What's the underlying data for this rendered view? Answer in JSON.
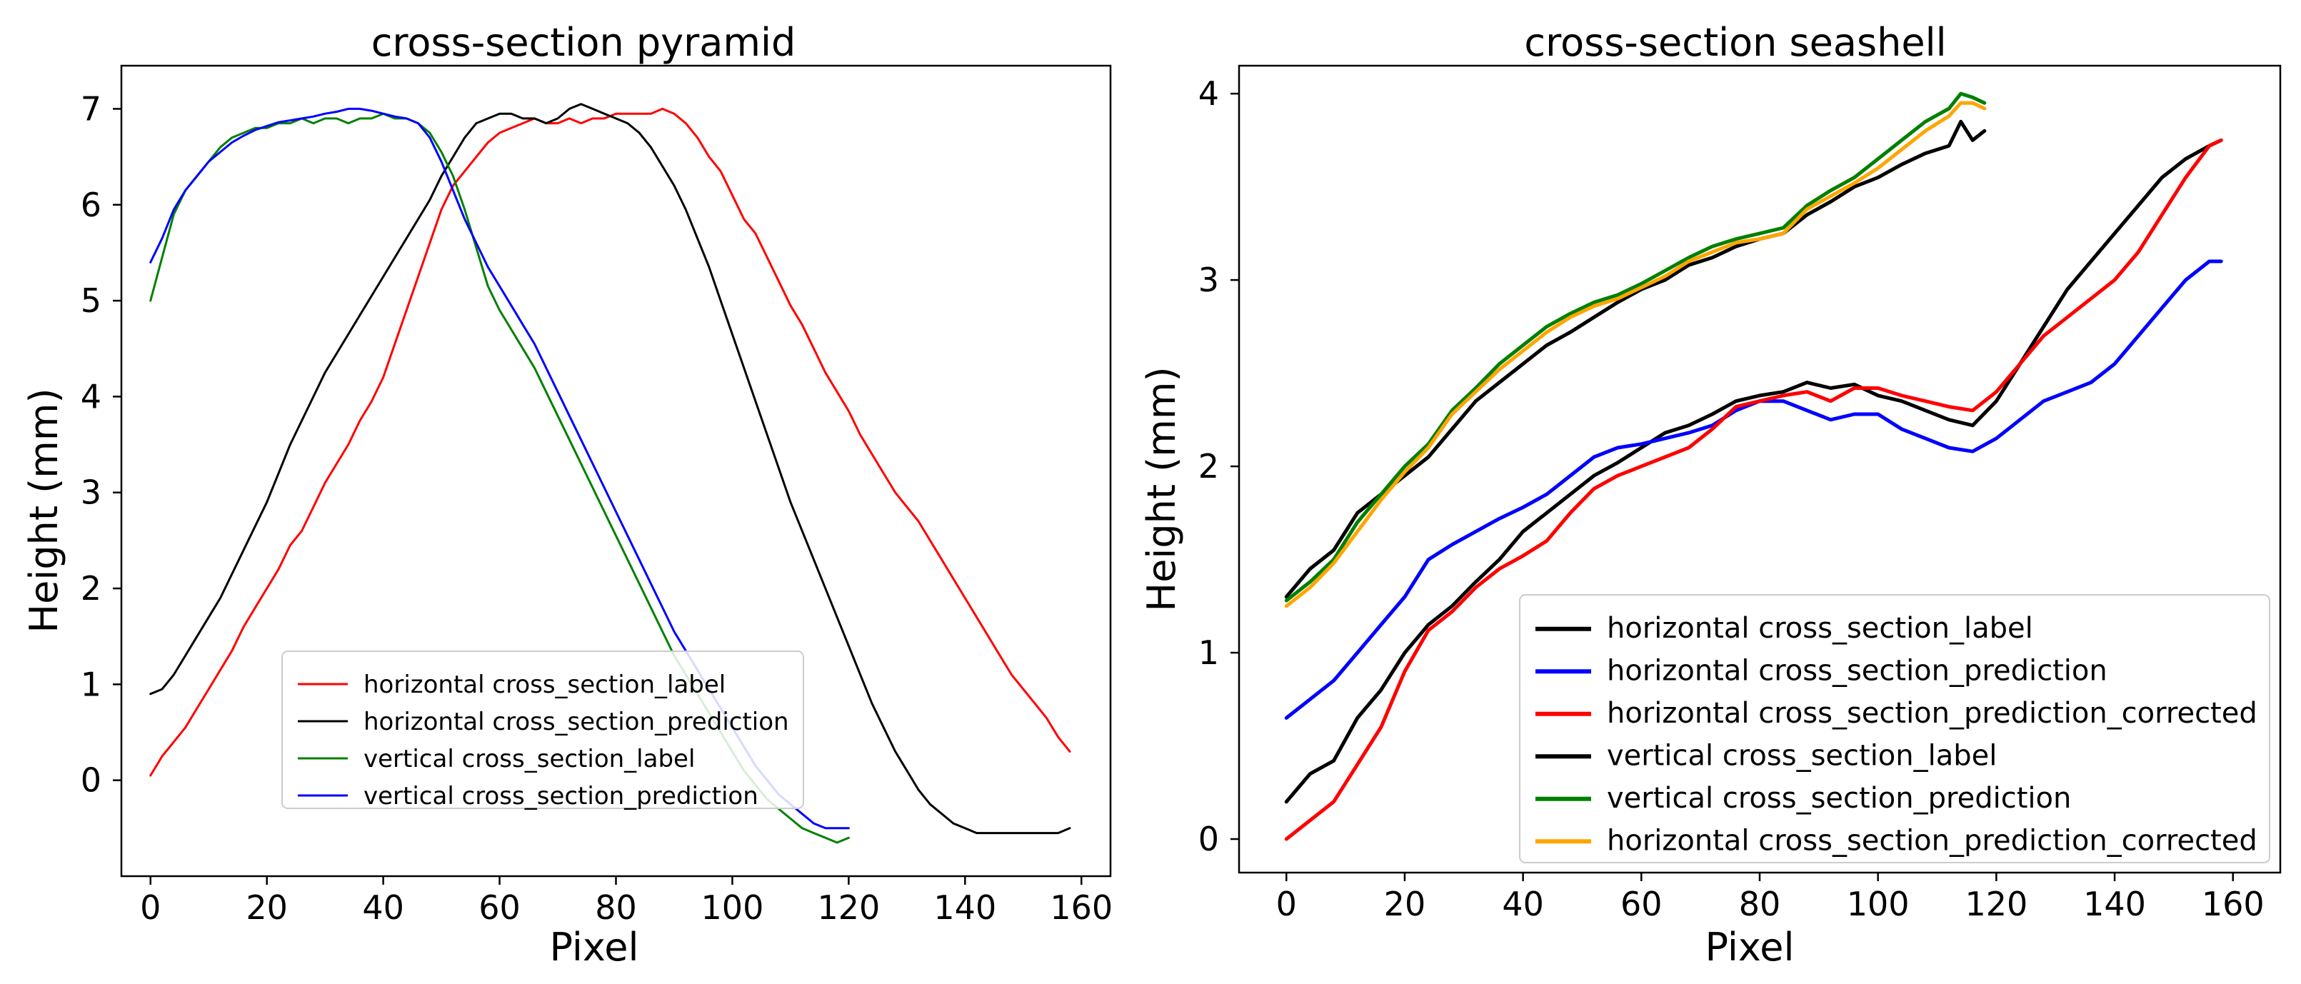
{
  "chart_data": [
    {
      "type": "line",
      "title": "cross-section pyramid",
      "xlabel": "Pixel",
      "ylabel": "Height (mm)",
      "xlim": [
        -5,
        165
      ],
      "ylim": [
        -1.0,
        7.45
      ],
      "xticks": [
        0,
        20,
        40,
        60,
        80,
        100,
        120,
        140,
        160
      ],
      "yticks": [
        0,
        1,
        2,
        3,
        4,
        5,
        6,
        7
      ],
      "legend_position": "lower-center",
      "series": [
        {
          "name": "horizontal cross_section_label",
          "color": "#ff0000",
          "width": 3,
          "x": [
            0,
            2,
            4,
            6,
            8,
            10,
            12,
            14,
            16,
            18,
            20,
            22,
            24,
            26,
            28,
            30,
            32,
            34,
            36,
            38,
            40,
            42,
            44,
            46,
            48,
            50,
            52,
            54,
            56,
            58,
            60,
            62,
            64,
            66,
            68,
            70,
            72,
            74,
            76,
            78,
            80,
            82,
            84,
            86,
            88,
            90,
            92,
            94,
            96,
            98,
            100,
            102,
            104,
            106,
            108,
            110,
            112,
            114,
            116,
            118,
            120,
            122,
            124,
            126,
            128,
            130,
            132,
            134,
            136,
            138,
            140,
            142,
            144,
            146,
            148,
            150,
            152,
            154,
            156,
            158
          ],
          "y": [
            0.05,
            0.25,
            0.4,
            0.55,
            0.75,
            0.95,
            1.15,
            1.35,
            1.6,
            1.8,
            2.0,
            2.2,
            2.45,
            2.6,
            2.85,
            3.1,
            3.3,
            3.5,
            3.75,
            3.95,
            4.2,
            4.55,
            4.9,
            5.25,
            5.6,
            5.95,
            6.2,
            6.35,
            6.5,
            6.65,
            6.75,
            6.8,
            6.85,
            6.9,
            6.85,
            6.85,
            6.9,
            6.85,
            6.9,
            6.9,
            6.95,
            6.95,
            6.95,
            6.95,
            7.0,
            6.95,
            6.85,
            6.7,
            6.5,
            6.35,
            6.1,
            5.85,
            5.7,
            5.45,
            5.2,
            4.95,
            4.75,
            4.5,
            4.25,
            4.05,
            3.85,
            3.6,
            3.4,
            3.2,
            3.0,
            2.85,
            2.7,
            2.5,
            2.3,
            2.1,
            1.9,
            1.7,
            1.5,
            1.3,
            1.1,
            0.95,
            0.8,
            0.65,
            0.45,
            0.3
          ]
        },
        {
          "name": "horizontal cross_section_prediction",
          "color": "#000000",
          "width": 3,
          "x": [
            0,
            2,
            4,
            6,
            8,
            10,
            12,
            14,
            16,
            18,
            20,
            22,
            24,
            26,
            28,
            30,
            32,
            34,
            36,
            38,
            40,
            42,
            44,
            46,
            48,
            50,
            52,
            54,
            56,
            58,
            60,
            62,
            64,
            66,
            68,
            70,
            72,
            74,
            76,
            78,
            80,
            82,
            84,
            86,
            88,
            90,
            92,
            94,
            96,
            98,
            100,
            102,
            104,
            106,
            108,
            110,
            112,
            114,
            116,
            118,
            120,
            122,
            124,
            126,
            128,
            130,
            132,
            134,
            136,
            138,
            140,
            142,
            144,
            146,
            148,
            150,
            152,
            154,
            156,
            158
          ],
          "y": [
            0.9,
            0.95,
            1.1,
            1.3,
            1.5,
            1.7,
            1.9,
            2.15,
            2.4,
            2.65,
            2.9,
            3.2,
            3.5,
            3.75,
            4.0,
            4.25,
            4.45,
            4.65,
            4.85,
            5.05,
            5.25,
            5.45,
            5.65,
            5.85,
            6.05,
            6.3,
            6.5,
            6.7,
            6.85,
            6.9,
            6.95,
            6.95,
            6.9,
            6.9,
            6.85,
            6.9,
            7.0,
            7.05,
            7.0,
            6.95,
            6.9,
            6.85,
            6.75,
            6.6,
            6.4,
            6.2,
            5.95,
            5.65,
            5.35,
            5.0,
            4.65,
            4.3,
            3.95,
            3.6,
            3.25,
            2.9,
            2.6,
            2.3,
            2.0,
            1.7,
            1.4,
            1.1,
            0.8,
            0.55,
            0.3,
            0.1,
            -0.1,
            -0.25,
            -0.35,
            -0.45,
            -0.5,
            -0.55,
            -0.55,
            -0.55,
            -0.55,
            -0.55,
            -0.55,
            -0.55,
            -0.55,
            -0.5
          ]
        },
        {
          "name": "vertical cross_section_label",
          "color": "#008000",
          "width": 3,
          "x": [
            0,
            2,
            4,
            6,
            8,
            10,
            12,
            14,
            16,
            18,
            20,
            22,
            24,
            26,
            28,
            30,
            32,
            34,
            36,
            38,
            40,
            42,
            44,
            46,
            48,
            50,
            52,
            54,
            56,
            58,
            60,
            62,
            64,
            66,
            68,
            70,
            72,
            74,
            76,
            78,
            80,
            82,
            84,
            86,
            88,
            90,
            92,
            94,
            96,
            98,
            100,
            102,
            104,
            106,
            108,
            110,
            112,
            114,
            116,
            118,
            120
          ],
          "y": [
            5.0,
            5.45,
            5.9,
            6.15,
            6.3,
            6.45,
            6.6,
            6.7,
            6.75,
            6.8,
            6.8,
            6.85,
            6.85,
            6.9,
            6.85,
            6.9,
            6.9,
            6.85,
            6.9,
            6.9,
            6.95,
            6.9,
            6.9,
            6.85,
            6.75,
            6.55,
            6.3,
            5.95,
            5.55,
            5.15,
            4.9,
            4.7,
            4.5,
            4.3,
            4.05,
            3.8,
            3.55,
            3.3,
            3.05,
            2.8,
            2.55,
            2.3,
            2.05,
            1.8,
            1.55,
            1.3,
            1.1,
            0.9,
            0.7,
            0.5,
            0.3,
            0.1,
            -0.05,
            -0.2,
            -0.3,
            -0.4,
            -0.5,
            -0.55,
            -0.6,
            -0.65,
            -0.6
          ]
        },
        {
          "name": "vertical cross_section_prediction",
          "color": "#0000ff",
          "width": 3,
          "x": [
            0,
            2,
            4,
            6,
            8,
            10,
            12,
            14,
            16,
            18,
            20,
            22,
            24,
            26,
            28,
            30,
            32,
            34,
            36,
            38,
            40,
            42,
            44,
            46,
            48,
            50,
            52,
            54,
            56,
            58,
            60,
            62,
            64,
            66,
            68,
            70,
            72,
            74,
            76,
            78,
            80,
            82,
            84,
            86,
            88,
            90,
            92,
            94,
            96,
            98,
            100,
            102,
            104,
            106,
            108,
            110,
            112,
            114,
            116,
            118,
            120
          ],
          "y": [
            5.4,
            5.65,
            5.95,
            6.15,
            6.3,
            6.45,
            6.55,
            6.65,
            6.72,
            6.78,
            6.82,
            6.86,
            6.88,
            6.9,
            6.92,
            6.95,
            6.97,
            7.0,
            7.0,
            6.98,
            6.95,
            6.92,
            6.9,
            6.85,
            6.7,
            6.45,
            6.15,
            5.85,
            5.6,
            5.35,
            5.15,
            4.95,
            4.75,
            4.55,
            4.3,
            4.05,
            3.8,
            3.55,
            3.3,
            3.05,
            2.8,
            2.55,
            2.3,
            2.05,
            1.8,
            1.55,
            1.35,
            1.15,
            0.95,
            0.75,
            0.55,
            0.35,
            0.15,
            0.0,
            -0.15,
            -0.25,
            -0.35,
            -0.45,
            -0.5,
            -0.5,
            -0.5
          ]
        }
      ]
    },
    {
      "type": "line",
      "title": "cross-section seashell",
      "xlabel": "Pixel",
      "ylabel": "Height (mm)",
      "xlim": [
        -8,
        168
      ],
      "ylim": [
        -0.18,
        4.15
      ],
      "xticks": [
        0,
        20,
        40,
        60,
        80,
        100,
        120,
        140,
        160
      ],
      "yticks": [
        0,
        1,
        2,
        3,
        4
      ],
      "legend_position": "lower-right",
      "series": [
        {
          "name": "horizontal cross_section_label",
          "color": "#000000",
          "width": 5,
          "x": [
            0,
            4,
            8,
            12,
            16,
            20,
            24,
            28,
            32,
            36,
            40,
            44,
            48,
            52,
            56,
            60,
            64,
            68,
            72,
            76,
            80,
            84,
            88,
            92,
            96,
            100,
            104,
            108,
            112,
            116,
            120,
            124,
            128,
            132,
            136,
            140,
            144,
            148,
            152,
            156,
            158
          ],
          "y": [
            0.2,
            0.35,
            0.42,
            0.65,
            0.8,
            1.0,
            1.15,
            1.25,
            1.38,
            1.5,
            1.65,
            1.75,
            1.85,
            1.95,
            2.02,
            2.1,
            2.18,
            2.22,
            2.28,
            2.35,
            2.38,
            2.4,
            2.45,
            2.42,
            2.44,
            2.38,
            2.35,
            2.3,
            2.25,
            2.22,
            2.35,
            2.55,
            2.75,
            2.95,
            3.1,
            3.25,
            3.4,
            3.55,
            3.65,
            3.72,
            3.75
          ]
        },
        {
          "name": "horizontal cross_section_prediction",
          "color": "#0000ff",
          "width": 5,
          "x": [
            0,
            4,
            8,
            12,
            16,
            20,
            24,
            28,
            32,
            36,
            40,
            44,
            48,
            52,
            56,
            60,
            64,
            68,
            72,
            76,
            80,
            84,
            88,
            92,
            96,
            100,
            104,
            108,
            112,
            116,
            120,
            124,
            128,
            132,
            136,
            140,
            144,
            148,
            152,
            156,
            158
          ],
          "y": [
            0.65,
            0.75,
            0.85,
            1.0,
            1.15,
            1.3,
            1.5,
            1.58,
            1.65,
            1.72,
            1.78,
            1.85,
            1.95,
            2.05,
            2.1,
            2.12,
            2.15,
            2.18,
            2.22,
            2.3,
            2.35,
            2.35,
            2.3,
            2.25,
            2.28,
            2.28,
            2.2,
            2.15,
            2.1,
            2.08,
            2.15,
            2.25,
            2.35,
            2.4,
            2.45,
            2.55,
            2.7,
            2.85,
            3.0,
            3.1,
            3.1
          ]
        },
        {
          "name": "horizontal cross_section_prediction_corrected",
          "color": "#ff0000",
          "width": 5,
          "x": [
            0,
            4,
            8,
            12,
            16,
            20,
            24,
            28,
            32,
            36,
            40,
            44,
            48,
            52,
            56,
            60,
            64,
            68,
            72,
            76,
            80,
            84,
            88,
            92,
            96,
            100,
            104,
            108,
            112,
            116,
            120,
            124,
            128,
            132,
            136,
            140,
            144,
            148,
            152,
            156,
            158
          ],
          "y": [
            0.0,
            0.1,
            0.2,
            0.4,
            0.6,
            0.9,
            1.12,
            1.22,
            1.35,
            1.45,
            1.52,
            1.6,
            1.75,
            1.88,
            1.95,
            2.0,
            2.05,
            2.1,
            2.2,
            2.32,
            2.35,
            2.38,
            2.4,
            2.35,
            2.42,
            2.42,
            2.38,
            2.35,
            2.32,
            2.3,
            2.4,
            2.55,
            2.7,
            2.8,
            2.9,
            3.0,
            3.15,
            3.35,
            3.55,
            3.72,
            3.75
          ]
        },
        {
          "name": "vertical cross_section_label",
          "color": "#000000",
          "width": 5,
          "x": [
            0,
            4,
            8,
            12,
            16,
            20,
            24,
            28,
            32,
            36,
            40,
            44,
            48,
            52,
            56,
            60,
            64,
            68,
            72,
            76,
            80,
            84,
            88,
            92,
            96,
            100,
            104,
            108,
            112,
            114,
            116,
            118
          ],
          "y": [
            1.3,
            1.45,
            1.55,
            1.75,
            1.85,
            1.95,
            2.05,
            2.2,
            2.35,
            2.45,
            2.55,
            2.65,
            2.72,
            2.8,
            2.88,
            2.95,
            3.0,
            3.08,
            3.12,
            3.18,
            3.22,
            3.25,
            3.35,
            3.42,
            3.5,
            3.55,
            3.62,
            3.68,
            3.72,
            3.85,
            3.75,
            3.8
          ]
        },
        {
          "name": "vertical cross_section_prediction",
          "color": "#008000",
          "width": 5,
          "x": [
            0,
            4,
            8,
            12,
            16,
            20,
            24,
            28,
            32,
            36,
            40,
            44,
            48,
            52,
            56,
            60,
            64,
            68,
            72,
            76,
            80,
            84,
            88,
            92,
            96,
            100,
            104,
            108,
            112,
            114,
            116,
            118
          ],
          "y": [
            1.28,
            1.38,
            1.5,
            1.7,
            1.85,
            2.0,
            2.12,
            2.3,
            2.42,
            2.55,
            2.65,
            2.75,
            2.82,
            2.88,
            2.92,
            2.98,
            3.05,
            3.12,
            3.18,
            3.22,
            3.25,
            3.28,
            3.4,
            3.48,
            3.55,
            3.65,
            3.75,
            3.85,
            3.92,
            4.0,
            3.98,
            3.95
          ]
        },
        {
          "name": "horizontal cross_section_prediction_corrected",
          "color": "#ffa500",
          "width": 5,
          "x": [
            0,
            4,
            8,
            12,
            16,
            20,
            24,
            28,
            32,
            36,
            40,
            44,
            48,
            52,
            56,
            60,
            64,
            68,
            72,
            76,
            80,
            84,
            88,
            92,
            96,
            100,
            104,
            108,
            112,
            114,
            116,
            118
          ],
          "y": [
            1.25,
            1.35,
            1.48,
            1.65,
            1.82,
            1.97,
            2.1,
            2.28,
            2.4,
            2.52,
            2.62,
            2.72,
            2.8,
            2.86,
            2.9,
            2.96,
            3.02,
            3.1,
            3.15,
            3.2,
            3.22,
            3.25,
            3.38,
            3.45,
            3.52,
            3.6,
            3.7,
            3.8,
            3.88,
            3.95,
            3.95,
            3.92
          ]
        }
      ]
    }
  ]
}
